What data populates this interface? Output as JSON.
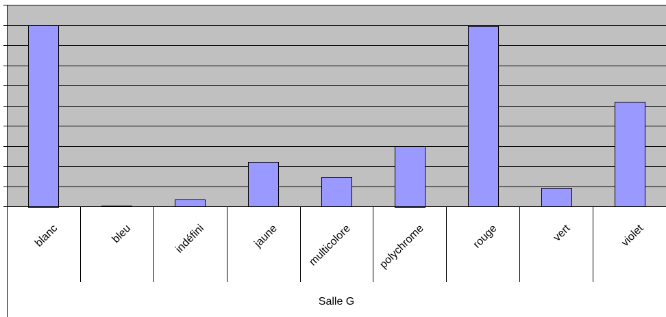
{
  "chart_data": {
    "type": "bar",
    "categories": [
      "blanc",
      "bleu",
      "indéfini",
      "jaune",
      "multicolore",
      "polychrome",
      "rouge",
      "vert",
      "violet"
    ],
    "values": [
      9,
      0.05,
      0.35,
      2.2,
      1.45,
      3,
      8.95,
      0.9,
      5.2
    ],
    "ylim": [
      0,
      10
    ],
    "y_gridlines": 10,
    "grid": true,
    "group_label": "Salle G",
    "colors": {
      "plot_background": "#c0c0c0",
      "bar_fill": "#9999ff",
      "bar_stroke": "#000000",
      "gridline": "#000000"
    }
  }
}
